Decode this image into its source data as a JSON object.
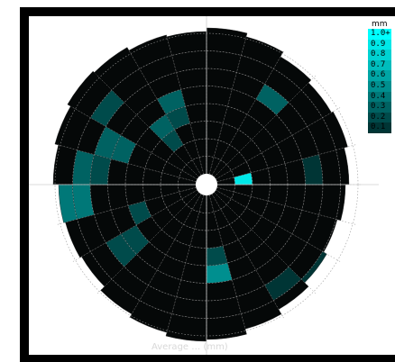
{
  "chart_data": {
    "type": "heatmap",
    "subtype": "polar-sector",
    "title": "",
    "footer_label": "Average … (mm)",
    "legend": {
      "unit": "mm",
      "labels": [
        "1.0+",
        "0.9",
        "0.8",
        "0.7",
        "0.6",
        "0.5",
        "0.4",
        "0.3",
        "0.2",
        "0.1"
      ],
      "colors": [
        "#00ffff",
        "#00e8e8",
        "#00d2d2",
        "#00bcbc",
        "#00a5a5",
        "#008f8f",
        "#007878",
        "#006262",
        "#004b4b",
        "#003535"
      ]
    },
    "rings": 8,
    "sectors": 24,
    "background_cell_color": "#050808",
    "highlight_cells": [
      {
        "ring": 1,
        "sector": 5,
        "value": 0.9
      },
      {
        "ring": 4,
        "sector": 11,
        "value": 0.5
      },
      {
        "ring": 3,
        "sector": 11,
        "value": 0.2
      },
      {
        "ring": 2,
        "sector": 21,
        "value": 0.25
      },
      {
        "ring": 3,
        "sector": 21,
        "value": 0.3
      },
      {
        "ring": 3,
        "sector": 22,
        "value": 0.2
      },
      {
        "ring": 4,
        "sector": 22,
        "value": 0.3
      },
      {
        "ring": 5,
        "sector": 2,
        "value": 0.3
      },
      {
        "ring": 4,
        "sector": 15,
        "value": 0.2
      },
      {
        "ring": 5,
        "sector": 15,
        "value": 0.25
      },
      {
        "ring": 3,
        "sector": 16,
        "value": 0.2
      },
      {
        "ring": 6,
        "sector": 17,
        "value": 0.4
      },
      {
        "ring": 7,
        "sector": 17,
        "value": 0.4
      },
      {
        "ring": 6,
        "sector": 18,
        "value": 0.3
      },
      {
        "ring": 5,
        "sector": 18,
        "value": 0.2
      },
      {
        "ring": 4,
        "sector": 19,
        "value": 0.3
      },
      {
        "ring": 5,
        "sector": 19,
        "value": 0.3
      },
      {
        "ring": 6,
        "sector": 20,
        "value": 0.2
      },
      {
        "ring": 5,
        "sector": 5,
        "value": 0.15
      },
      {
        "ring": 7,
        "sector": 8,
        "value": 0.15
      },
      {
        "ring": 6,
        "sector": 9,
        "value": 0.15
      }
    ]
  }
}
